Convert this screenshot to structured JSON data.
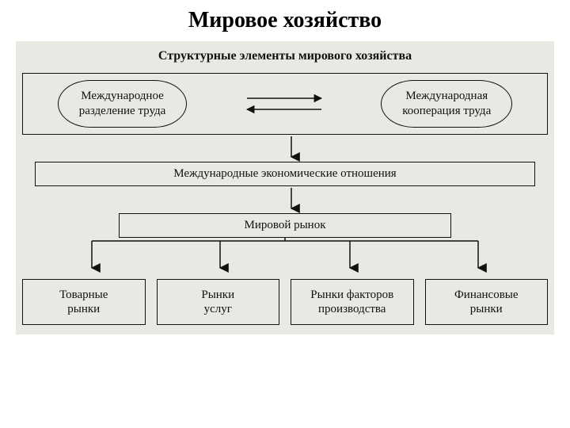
{
  "slide": {
    "title": "Мировое хозяйство",
    "title_fontsize": 28,
    "title_color": "#000000",
    "background": "#ffffff"
  },
  "diagram": {
    "type": "flowchart",
    "paper_background": "#e9e8e3",
    "stroke_color": "#111111",
    "text_color": "#111111",
    "body_fontsize": 15,
    "subheader": "Структурные элементы мирового хозяйства",
    "subheader_fontsize": 16,
    "level1": {
      "left": "Международное\nразделение труда",
      "right": "Международная\nкооперация труда"
    },
    "level2": "Международные экономические отношения",
    "level3": "Мировой рынок",
    "level4": [
      "Товарные\nрынки",
      "Рынки\nуслуг",
      "Рынки факторов\nпроизводства",
      "Финансовые\nрынки"
    ],
    "arrow": {
      "stroke_width": 1.5,
      "head_size": 7
    }
  }
}
